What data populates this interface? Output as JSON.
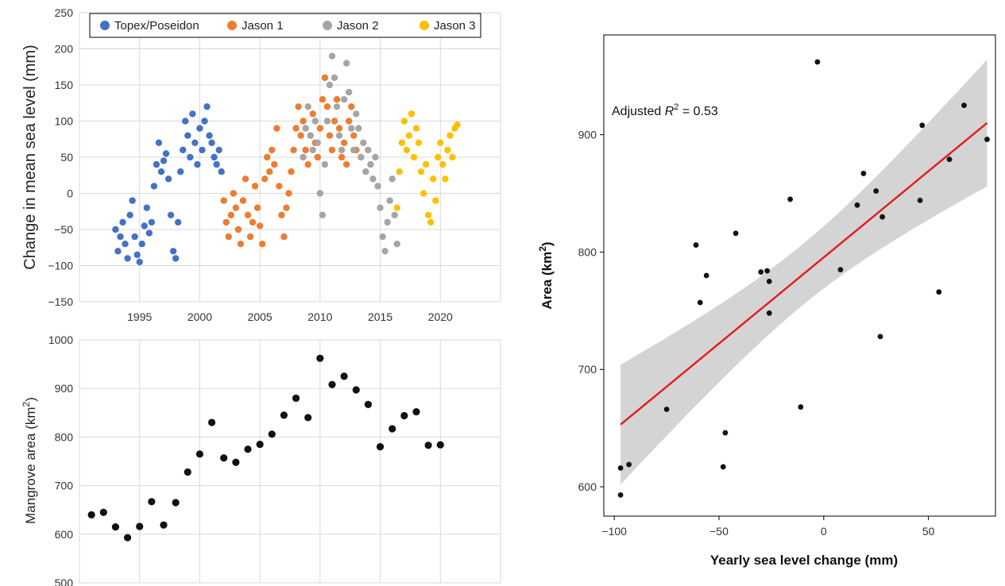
{
  "chart_data": [
    {
      "type": "scatter",
      "title": "",
      "xlabel": "",
      "ylabel": "Change in mean sea level (mm)",
      "xlim": [
        1990,
        2025
      ],
      "ylim": [
        -150,
        250
      ],
      "xticks": [
        "1995",
        "2000",
        "2005",
        "2010",
        "2015",
        "2020"
      ],
      "yticks": [
        "250",
        "200",
        "150",
        "100",
        "50",
        "0",
        "−50",
        "−100",
        "−150"
      ],
      "grid": true,
      "legend": "top",
      "series": [
        {
          "name": "Topex/Poseidon",
          "color": "#4472c4",
          "x": [
            1993.0,
            1993.2,
            1993.4,
            1993.6,
            1993.8,
            1994.0,
            1994.2,
            1994.4,
            1994.6,
            1994.8,
            1995.0,
            1995.2,
            1995.4,
            1995.6,
            1995.8,
            1996.0,
            1996.2,
            1996.4,
            1996.6,
            1996.8,
            1997.0,
            1997.2,
            1997.4,
            1997.6,
            1997.8,
            1998.0,
            1998.2,
            1998.4,
            1998.6,
            1998.8,
            1999.0,
            1999.2,
            1999.4,
            1999.6,
            1999.8,
            2000.0,
            2000.2,
            2000.4,
            2000.6,
            2000.8,
            2001.0,
            2001.2,
            2001.4,
            2001.6,
            2001.8
          ],
          "y": [
            -50,
            -80,
            -60,
            -40,
            -70,
            -90,
            -30,
            -10,
            -60,
            -85,
            -95,
            -70,
            -45,
            -20,
            -55,
            -40,
            10,
            40,
            70,
            30,
            45,
            55,
            20,
            -30,
            -80,
            -90,
            -40,
            30,
            60,
            100,
            80,
            50,
            110,
            70,
            40,
            90,
            60,
            100,
            120,
            80,
            70,
            50,
            40,
            60,
            30
          ]
        },
        {
          "name": "Jason 1",
          "color": "#ed7d31",
          "x": [
            2002.0,
            2002.2,
            2002.4,
            2002.6,
            2002.8,
            2003.0,
            2003.2,
            2003.4,
            2003.6,
            2003.8,
            2004.0,
            2004.2,
            2004.4,
            2004.6,
            2004.8,
            2005.0,
            2005.2,
            2005.4,
            2005.6,
            2005.8,
            2006.0,
            2006.2,
            2006.4,
            2006.6,
            2006.8,
            2007.0,
            2007.2,
            2007.4,
            2007.6,
            2007.8,
            2008.0,
            2008.2,
            2008.4,
            2008.6,
            2008.8,
            2009.0,
            2009.2,
            2009.4,
            2009.6,
            2009.8,
            2010.0,
            2010.2,
            2010.4,
            2010.6,
            2010.8,
            2011.0,
            2011.2,
            2011.4,
            2011.6,
            2011.8,
            2012.0,
            2012.2,
            2012.4,
            2012.6,
            2012.8,
            2013.0
          ],
          "y": [
            -10,
            -40,
            -60,
            -30,
            0,
            -20,
            -50,
            -70,
            -10,
            20,
            -30,
            -60,
            -40,
            10,
            -20,
            -45,
            -70,
            20,
            50,
            30,
            60,
            40,
            90,
            10,
            -30,
            -60,
            -20,
            0,
            30,
            60,
            90,
            120,
            80,
            100,
            60,
            40,
            80,
            110,
            70,
            50,
            90,
            130,
            160,
            120,
            80,
            60,
            100,
            130,
            90,
            50,
            70,
            40,
            100,
            120,
            80,
            60
          ]
        },
        {
          "name": "Jason 2",
          "color": "#a5a5a5",
          "x": [
            2008.6,
            2008.8,
            2009.0,
            2009.2,
            2009.4,
            2009.6,
            2009.8,
            2010.0,
            2010.2,
            2010.4,
            2010.6,
            2010.8,
            2011.0,
            2011.2,
            2011.4,
            2011.6,
            2011.8,
            2012.0,
            2012.2,
            2012.4,
            2012.6,
            2012.8,
            2013.0,
            2013.2,
            2013.4,
            2013.6,
            2013.8,
            2014.0,
            2014.2,
            2014.4,
            2014.6,
            2014.8,
            2015.0,
            2015.2,
            2015.4,
            2015.6,
            2015.8,
            2016.0,
            2016.2,
            2016.4
          ],
          "y": [
            50,
            90,
            120,
            80,
            60,
            100,
            70,
            0,
            -30,
            40,
            100,
            150,
            190,
            160,
            120,
            80,
            60,
            130,
            180,
            140,
            90,
            60,
            110,
            90,
            50,
            70,
            30,
            60,
            40,
            20,
            50,
            10,
            -20,
            -60,
            -80,
            -40,
            -10,
            20,
            -30,
            -70
          ]
        },
        {
          "name": "Jason 3",
          "color": "#ffc000",
          "x": [
            2016.4,
            2016.6,
            2016.8,
            2017.0,
            2017.2,
            2017.4,
            2017.6,
            2017.8,
            2018.0,
            2018.2,
            2018.4,
            2018.6,
            2018.8,
            2019.0,
            2019.2,
            2019.4,
            2019.6,
            2019.8,
            2020.0,
            2020.2,
            2020.4,
            2020.6,
            2020.8,
            2021.0,
            2021.2,
            2021.4
          ],
          "y": [
            -20,
            30,
            70,
            100,
            60,
            80,
            110,
            50,
            90,
            70,
            30,
            0,
            40,
            -30,
            -40,
            20,
            -10,
            50,
            70,
            40,
            20,
            60,
            80,
            50,
            90,
            95
          ]
        }
      ]
    },
    {
      "type": "scatter",
      "title": "",
      "xlabel": "",
      "ylabel": "Mangrove area (km",
      "ylabel_sup": "2",
      "ylabel_end": ")",
      "xlim": [
        1990,
        2025
      ],
      "ylim": [
        500,
        1000
      ],
      "yticks": [
        "1000",
        "900",
        "800",
        "700",
        "600",
        "500"
      ],
      "grid": true,
      "series": [
        {
          "name": "",
          "color": "#111111",
          "x": [
            1991,
            1992,
            1993,
            1994,
            1995,
            1996,
            1997,
            1998,
            1999,
            2000,
            2001,
            2002,
            2003,
            2004,
            2005,
            2006,
            2007,
            2008,
            2009,
            2010,
            2011,
            2012,
            2013,
            2014,
            2015,
            2016,
            2017,
            2018,
            2019,
            2020
          ],
          "y": [
            640,
            645,
            615,
            593,
            616,
            667,
            619,
            665,
            728,
            765,
            830,
            757,
            748,
            775,
            785,
            806,
            845,
            880,
            840,
            962,
            908,
            925,
            897,
            867,
            780,
            817,
            844,
            852,
            783,
            784
          ]
        }
      ]
    },
    {
      "type": "scatter",
      "title": "",
      "annotation": "Adjusted ",
      "annotation_var": "R",
      "annotation_sup": "2",
      "annotation_val": " = 0.53",
      "xlabel": "Yearly sea level change (mm)",
      "ylabel": "Area (km",
      "ylabel_sup": "2",
      "ylabel_end": ")",
      "xlim": [
        -105,
        82
      ],
      "ylim": [
        575,
        985
      ],
      "xticks": [
        "−100",
        "−50",
        "0",
        "50"
      ],
      "yticks": [
        "900",
        "800",
        "700",
        "600"
      ],
      "grid": false,
      "fit": {
        "x": [
          -97,
          78
        ],
        "y": [
          653,
          910
        ],
        "band_lower": [
          603,
          857
        ],
        "band_upper": [
          705,
          965
        ],
        "line_color": "#e41a1c",
        "band_color": "#cccccc"
      },
      "series": [
        {
          "name": "",
          "color": "#111111",
          "x": [
            -97,
            -97,
            -93,
            -75,
            -61,
            -59,
            -56,
            -48,
            -47,
            -42,
            -30,
            -27,
            -26,
            -26,
            -16,
            -11,
            -3,
            8,
            16,
            19,
            25,
            28,
            27,
            46,
            47,
            55,
            60,
            67,
            78
          ],
          "y": [
            616,
            593,
            619,
            666,
            806,
            757,
            780,
            617,
            646,
            816,
            783,
            784,
            775,
            748,
            845,
            668,
            962,
            785,
            840,
            867,
            852,
            830,
            728,
            844,
            908,
            766,
            879,
            925,
            896
          ]
        }
      ]
    }
  ]
}
